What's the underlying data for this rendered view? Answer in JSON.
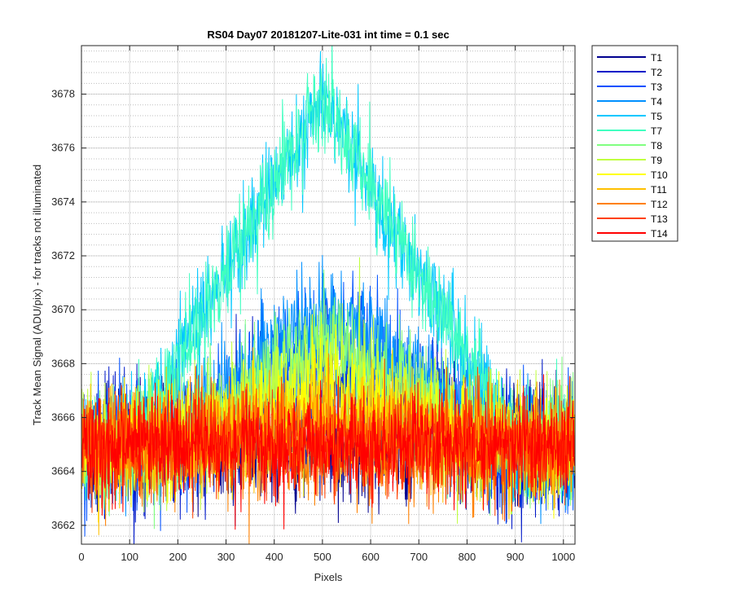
{
  "chart_data": {
    "type": "line",
    "title": "RS04 Day07 20181207-Lite-031 int time = 0.1 sec",
    "xlabel": "Pixels",
    "ylabel": "Track Mean Signal (ADU/pix) - for tracks not illuminated",
    "xlim": [
      0,
      1024
    ],
    "ylim": [
      3661.3,
      3679.8
    ],
    "xticks": [
      0,
      100,
      200,
      300,
      400,
      500,
      600,
      700,
      800,
      900,
      1000
    ],
    "yticks": [
      3662,
      3664,
      3666,
      3668,
      3670,
      3672,
      3674,
      3676,
      3678
    ],
    "grid": true,
    "legend_position": "outside-top-right",
    "points_per_series": 1024,
    "series": [
      {
        "name": "T1",
        "color": "#00008f",
        "baseline": 3665.0,
        "peak": 0.0,
        "peak_center": 512,
        "peak_halfwidth": 300,
        "noise_sd": 1.1
      },
      {
        "name": "T2",
        "color": "#0018c8",
        "baseline": 3665.0,
        "peak": 2.9,
        "peak_center": 520,
        "peak_halfwidth": 300,
        "noise_sd": 1.2
      },
      {
        "name": "T3",
        "color": "#0050ff",
        "baseline": 3665.0,
        "peak": 4.0,
        "peak_center": 512,
        "peak_halfwidth": 330,
        "noise_sd": 1.2
      },
      {
        "name": "T4",
        "color": "#0090ff",
        "baseline": 3665.0,
        "peak": 5.0,
        "peak_center": 512,
        "peak_halfwidth": 380,
        "noise_sd": 1.0
      },
      {
        "name": "T5",
        "color": "#00c8ff",
        "baseline": 3665.0,
        "peak": 12.8,
        "peak_center": 500,
        "peak_halfwidth": 400,
        "noise_sd": 0.9
      },
      {
        "name": "T7",
        "color": "#40ffc0",
        "baseline": 3665.0,
        "peak": 12.8,
        "peak_center": 500,
        "peak_halfwidth": 400,
        "noise_sd": 0.9
      },
      {
        "name": "T8",
        "color": "#80ff80",
        "baseline": 3665.0,
        "peak": 4.0,
        "peak_center": 512,
        "peak_halfwidth": 330,
        "noise_sd": 1.0
      },
      {
        "name": "T9",
        "color": "#c0ff40",
        "baseline": 3665.0,
        "peak": 3.0,
        "peak_center": 512,
        "peak_halfwidth": 330,
        "noise_sd": 1.0
      },
      {
        "name": "T10",
        "color": "#ffff00",
        "baseline": 3665.0,
        "peak": 1.8,
        "peak_center": 512,
        "peak_halfwidth": 330,
        "noise_sd": 1.0
      },
      {
        "name": "T11",
        "color": "#ffc000",
        "baseline": 3665.0,
        "peak": 1.0,
        "peak_center": 512,
        "peak_halfwidth": 330,
        "noise_sd": 1.0
      },
      {
        "name": "T12",
        "color": "#ff8000",
        "baseline": 3665.0,
        "peak": 0.0,
        "peak_center": 512,
        "peak_halfwidth": 330,
        "noise_sd": 1.0
      },
      {
        "name": "T13",
        "color": "#ff4000",
        "baseline": 3665.0,
        "peak": 0.0,
        "peak_center": 512,
        "peak_halfwidth": 330,
        "noise_sd": 1.0
      },
      {
        "name": "T14",
        "color": "#ff0000",
        "baseline": 3665.0,
        "peak": 0.0,
        "peak_center": 512,
        "peak_halfwidth": 330,
        "noise_sd": 0.95
      }
    ]
  }
}
